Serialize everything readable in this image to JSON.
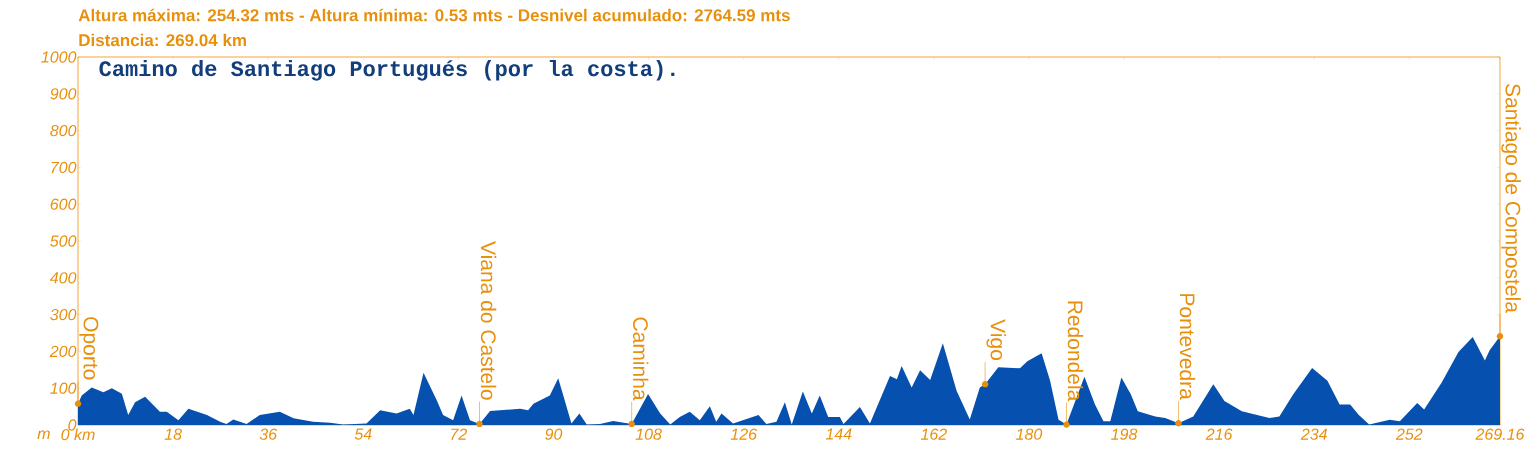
{
  "chart_data": {
    "type": "area",
    "title": "Camino de Santiago Portugués (por la costa).",
    "ylabel": "m",
    "color": "#0650b0",
    "annotations": [
      "Altura máxima: 254.32 mts - Altura mínima: 0.53 mts - Desnivel acumulado: 2764.59 mts",
      "Distancia: 269.04 km",
      {
        "text": "Oporto",
        "x": 0,
        "y": 58
      },
      {
        "text": "Viana do Castelo",
        "x": 76.0,
        "y": 3
      },
      {
        "text": "Caminha",
        "x": 104.8,
        "y": 3
      },
      {
        "text": "Vigo",
        "x": 171.7,
        "y": 111
      },
      {
        "text": "Redondela",
        "x": 187.1,
        "y": 1
      },
      {
        "text": "Pontevedra",
        "x": 208.3,
        "y": 5
      },
      {
        "text": "Santiago de Compostela",
        "x": 269.16,
        "y": 241
      }
    ],
    "x": [
      0,
      0.7,
      2.6,
      4.8,
      6.4,
      8.3,
      9.5,
      10.8,
      12.7,
      15.5,
      16.8,
      19.0,
      20.9,
      24.4,
      26.9,
      28.1,
      29.4,
      31.9,
      34.4,
      38.2,
      40.8,
      44.5,
      47.7,
      50.2,
      54.6,
      57.2,
      60.3,
      62.8,
      63.5,
      65.4,
      67.9,
      69.1,
      71.0,
      72.6,
      74.2,
      76.0,
      78.0,
      83.7,
      85.2,
      86.2,
      89.3,
      90.9,
      93.4,
      94.9,
      96.3,
      98.8,
      101.3,
      104.8,
      107.9,
      110.2,
      112.1,
      113.9,
      115.8,
      117.7,
      119.6,
      120.8,
      121.8,
      124.0,
      128.8,
      130.3,
      132.2,
      133.8,
      135.1,
      137.2,
      138.9,
      140.4,
      142.0,
      144.2,
      144.9,
      148.0,
      149.9,
      153.7,
      155.0,
      155.9,
      157.8,
      159.4,
      161.3,
      163.7,
      166.3,
      168.8,
      170.7,
      171.7,
      174.2,
      178.3,
      179.7,
      182.4,
      184.0,
      185.6,
      187.1,
      190.5,
      192.5,
      194.1,
      195.4,
      197.5,
      199.3,
      200.6,
      203.9,
      205.8,
      208.3,
      211.1,
      214.9,
      217.0,
      220.3,
      225.5,
      227.4,
      230.0,
      233.6,
      236.5,
      238.8,
      240.8,
      242.4,
      244.4,
      248.3,
      250.2,
      253.5,
      254.8,
      258.1,
      261.3,
      264.0,
      266.3,
      267.2,
      269.16
    ],
    "values": [
      58,
      80,
      102,
      89,
      100,
      85,
      27,
      62,
      77,
      36,
      36,
      13,
      44,
      27,
      9,
      3,
      15,
      3,
      27,
      36,
      18,
      9,
      6,
      1,
      4,
      40,
      31,
      44,
      27,
      142,
      67,
      27,
      13,
      80,
      13,
      3,
      38,
      44,
      40,
      58,
      80,
      127,
      4,
      31,
      1,
      3,
      11,
      3,
      84,
      31,
      1,
      22,
      36,
      13,
      51,
      9,
      31,
      4,
      27,
      3,
      9,
      62,
      1,
      91,
      31,
      80,
      22,
      22,
      3,
      49,
      4,
      133,
      124,
      160,
      102,
      149,
      122,
      222,
      93,
      15,
      102,
      111,
      157,
      154,
      173,
      195,
      120,
      14,
      1,
      131,
      56,
      10,
      10,
      129,
      83,
      37,
      23,
      19,
      5,
      23,
      111,
      65,
      37,
      19,
      23,
      83,
      155,
      120,
      56,
      56,
      28,
      1,
      14,
      10,
      60,
      42,
      115,
      198,
      239,
      175,
      203,
      241
    ],
    "xlim": [
      0,
      269.16
    ],
    "ylim": [
      0,
      1000
    ],
    "xticks": [
      {
        "value": 0,
        "label": "0 km"
      },
      18,
      36,
      54,
      72,
      90,
      108,
      126,
      144,
      162,
      180,
      198,
      216,
      234,
      252,
      {
        "value": 269.16,
        "label": "269.16"
      }
    ],
    "yticks": [
      0,
      100,
      200,
      300,
      400,
      500,
      600,
      700,
      800,
      900,
      1000
    ]
  }
}
